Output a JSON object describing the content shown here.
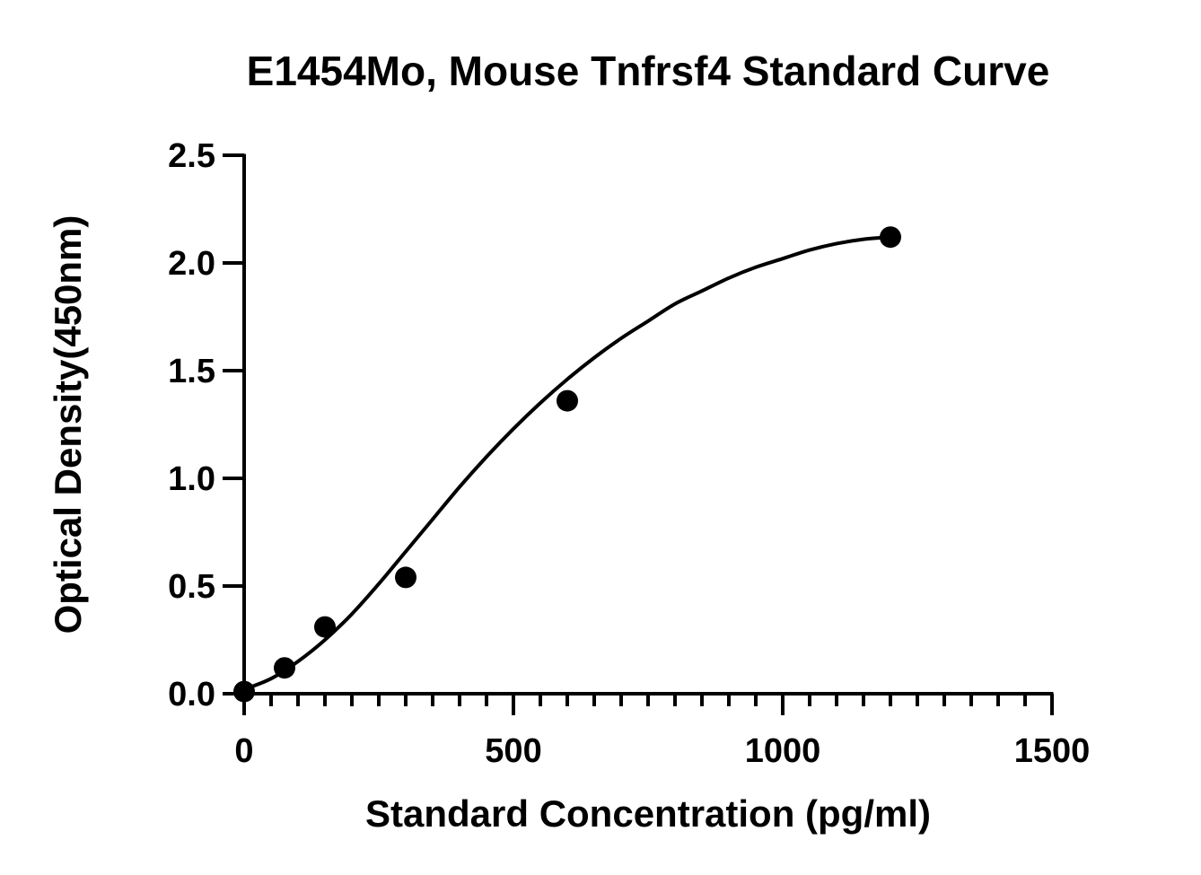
{
  "chart_data": {
    "type": "scatter",
    "title": "E1454Mo, Mouse Tnfrsf4 Standard Curve",
    "xlabel": "Standard Concentration (pg/ml)",
    "ylabel": "Optical Density(450nm)",
    "xlim": [
      0,
      1500
    ],
    "ylim": [
      0,
      2.5
    ],
    "x_ticks": [
      0,
      500,
      1000,
      1500
    ],
    "x_tick_labels": [
      "0",
      "500",
      "1000",
      "1500"
    ],
    "x_minor_step": 50,
    "y_ticks": [
      0,
      0.5,
      1.0,
      1.5,
      2.0,
      2.5
    ],
    "y_tick_labels": [
      "0.0",
      "0.5",
      "1.0",
      "1.5",
      "2.0",
      "2.5"
    ],
    "grid": false,
    "series": [
      {
        "x": [
          0,
          75,
          150,
          300,
          600,
          1200
        ],
        "y": [
          0.01,
          0.12,
          0.31,
          0.54,
          1.36,
          2.12
        ]
      }
    ],
    "fit_curve": {
      "x": [
        0,
        50,
        100,
        150,
        200,
        250,
        300,
        350,
        400,
        450,
        500,
        550,
        600,
        650,
        700,
        750,
        800,
        850,
        900,
        950,
        1000,
        1050,
        1100,
        1150,
        1200
      ],
      "y": [
        0.02,
        0.07,
        0.15,
        0.25,
        0.37,
        0.51,
        0.66,
        0.81,
        0.96,
        1.1,
        1.23,
        1.35,
        1.46,
        1.56,
        1.65,
        1.73,
        1.81,
        1.87,
        1.93,
        1.98,
        2.02,
        2.06,
        2.09,
        2.11,
        2.12
      ]
    },
    "colors": {
      "marker": "#000000",
      "line": "#000000",
      "axis": "#000000"
    }
  }
}
